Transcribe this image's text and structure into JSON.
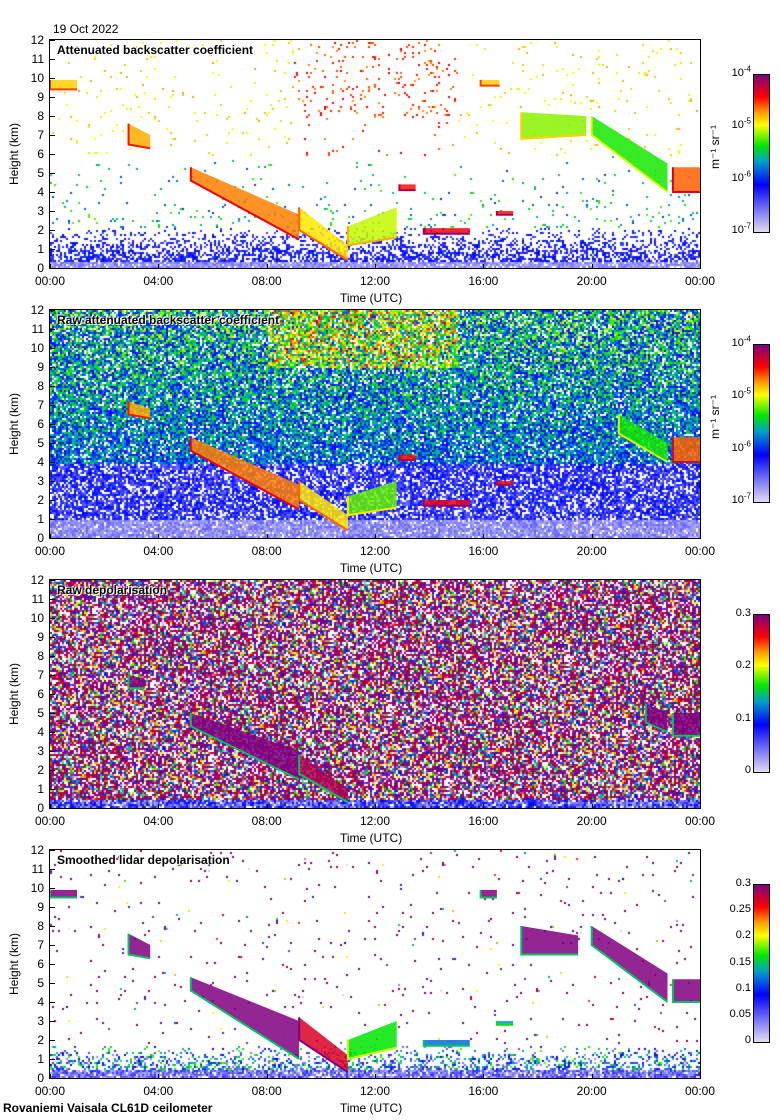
{
  "header": {
    "date": "19 Oct 2022"
  },
  "footer": {
    "caption": "Rovaniemi Vaisala CL61D ceilometer"
  },
  "axes": {
    "xlabel": "Time (UTC)",
    "ylabel": "Height (km)",
    "xticks": [
      "00:00",
      "04:00",
      "08:00",
      "12:00",
      "16:00",
      "20:00",
      "00:00"
    ],
    "yticks": [
      "0",
      "1",
      "2",
      "3",
      "4",
      "5",
      "6",
      "7",
      "8",
      "9",
      "10",
      "11",
      "12"
    ],
    "xlim": [
      0,
      24
    ],
    "ylim": [
      0,
      12
    ]
  },
  "colors": {
    "lavender": "#e0dcf0",
    "blue": "#0000ff",
    "green": "#00e000",
    "yellow": "#ffff00",
    "red": "#ff0000",
    "purple": "#800080"
  },
  "chart_data": [
    {
      "type": "heatmap",
      "title": "Attenuated backscatter coefficient",
      "mode": "att",
      "colorbar": {
        "scale": "log",
        "unit": "m⁻¹ sr⁻¹",
        "range": [
          1e-07,
          0.0001
        ],
        "ticks": [
          {
            "base": "10",
            "exp": "-4"
          },
          {
            "base": "10",
            "exp": "-5"
          },
          {
            "base": "10",
            "exp": "-6"
          },
          {
            "base": "10",
            "exp": "-7"
          }
        ]
      },
      "features": [
        {
          "t": [
            0,
            1
          ],
          "bottom": [
            9.4,
            9.4
          ],
          "top": [
            9.9,
            9.9
          ],
          "level": 0.72
        },
        {
          "t": [
            2.9,
            3.7
          ],
          "bottom": [
            6.5,
            6.3
          ],
          "top": [
            7.6,
            7.0
          ],
          "level": 0.75
        },
        {
          "t": [
            5.2,
            9.2
          ],
          "bottom": [
            4.6,
            1.5
          ],
          "top": [
            5.3,
            2.8
          ],
          "level": 0.78
        },
        {
          "t": [
            9.2,
            11.0
          ],
          "bottom": [
            2.0,
            0.4
          ],
          "top": [
            3.2,
            1.2
          ],
          "level": 0.7
        },
        {
          "t": [
            11.0,
            12.8
          ],
          "bottom": [
            1.2,
            1.6
          ],
          "top": [
            2.2,
            3.2
          ],
          "level": 0.65
        },
        {
          "t": [
            12.9,
            13.5
          ],
          "bottom": [
            4.1,
            4.1
          ],
          "top": [
            4.4,
            4.4
          ],
          "level": 0.85
        },
        {
          "t": [
            13.8,
            15.5
          ],
          "bottom": [
            1.8,
            1.8
          ],
          "top": [
            2.1,
            2.1
          ],
          "level": 0.88
        },
        {
          "t": [
            16.5,
            17.1
          ],
          "bottom": [
            2.8,
            2.8
          ],
          "top": [
            3.0,
            3.0
          ],
          "level": 0.85
        },
        {
          "t": [
            15.9,
            16.6
          ],
          "bottom": [
            9.6,
            9.6
          ],
          "top": [
            9.9,
            9.9
          ],
          "level": 0.72
        },
        {
          "t": [
            17.4,
            19.8
          ],
          "bottom": [
            6.8,
            7.0
          ],
          "top": [
            8.2,
            8.0
          ],
          "level": 0.62
        },
        {
          "t": [
            20.0,
            22.8
          ],
          "bottom": [
            7.0,
            4.0
          ],
          "top": [
            8.0,
            5.5
          ],
          "level": 0.56
        },
        {
          "t": [
            23.0,
            24
          ],
          "bottom": [
            4.0,
            4.0
          ],
          "top": [
            5.3,
            5.3
          ],
          "level": 0.8
        }
      ]
    },
    {
      "type": "heatmap",
      "title": "Raw attenuated backscatter coefficient",
      "mode": "raw",
      "colorbar": {
        "scale": "log",
        "unit": "m⁻¹ sr⁻¹",
        "range": [
          1e-07,
          0.0001
        ],
        "ticks": [
          {
            "base": "10",
            "exp": "-4"
          },
          {
            "base": "10",
            "exp": "-5"
          },
          {
            "base": "10",
            "exp": "-6"
          },
          {
            "base": "10",
            "exp": "-7"
          }
        ]
      },
      "features": [
        {
          "t": [
            2.9,
            3.7
          ],
          "bottom": [
            6.5,
            6.3
          ],
          "top": [
            7.2,
            6.8
          ],
          "level": 0.75
        },
        {
          "t": [
            5.2,
            9.2
          ],
          "bottom": [
            4.6,
            1.5
          ],
          "top": [
            5.3,
            2.8
          ],
          "level": 0.78
        },
        {
          "t": [
            9.2,
            11.0
          ],
          "bottom": [
            2.0,
            0.4
          ],
          "top": [
            3.0,
            1.2
          ],
          "level": 0.7
        },
        {
          "t": [
            11.0,
            12.8
          ],
          "bottom": [
            1.2,
            1.6
          ],
          "top": [
            2.2,
            3.0
          ],
          "level": 0.6
        },
        {
          "t": [
            12.9,
            13.5
          ],
          "bottom": [
            4.1,
            4.1
          ],
          "top": [
            4.4,
            4.4
          ],
          "level": 0.85
        },
        {
          "t": [
            13.8,
            15.5
          ],
          "bottom": [
            1.7,
            1.7
          ],
          "top": [
            2.0,
            2.0
          ],
          "level": 0.88
        },
        {
          "t": [
            16.5,
            17.1
          ],
          "bottom": [
            2.8,
            2.8
          ],
          "top": [
            3.0,
            3.0
          ],
          "level": 0.85
        },
        {
          "t": [
            21.0,
            22.8
          ],
          "bottom": [
            5.5,
            4.0
          ],
          "top": [
            6.5,
            5.0
          ],
          "level": 0.56
        },
        {
          "t": [
            23.0,
            24
          ],
          "bottom": [
            4.0,
            4.0
          ],
          "top": [
            5.3,
            5.3
          ],
          "level": 0.8
        }
      ]
    },
    {
      "type": "heatmap",
      "title": "Raw depolarisation",
      "mode": "depol",
      "colorbar": {
        "scale": "linear",
        "range": [
          0,
          0.3
        ],
        "ticks": [
          {
            "base": "0.3"
          },
          {
            "base": "0.2"
          },
          {
            "base": "0.1"
          },
          {
            "base": "0"
          }
        ]
      },
      "features": [
        {
          "t": [
            2.9,
            3.5
          ],
          "bottom": [
            6.3,
            6.3
          ],
          "top": [
            7.0,
            6.8
          ],
          "level": 1
        },
        {
          "t": [
            5.2,
            9.2
          ],
          "bottom": [
            4.3,
            1.5
          ],
          "top": [
            5.0,
            3.0
          ],
          "level": 1
        },
        {
          "t": [
            9.2,
            11.0
          ],
          "bottom": [
            1.8,
            0.3
          ],
          "top": [
            2.8,
            1.0
          ],
          "level": 0.95
        },
        {
          "t": [
            22.0,
            22.8
          ],
          "bottom": [
            4.5,
            4.0
          ],
          "top": [
            5.5,
            5.0
          ],
          "level": 1
        },
        {
          "t": [
            23.0,
            24
          ],
          "bottom": [
            3.8,
            3.8
          ],
          "top": [
            5.0,
            5.0
          ],
          "level": 1
        }
      ]
    },
    {
      "type": "heatmap",
      "title": "Smoothed lidar depolarisation",
      "mode": "smooth",
      "colorbar": {
        "scale": "linear",
        "range": [
          0,
          0.3
        ],
        "ticks": [
          {
            "base": "0.3"
          },
          {
            "base": "0.25"
          },
          {
            "base": "0.2"
          },
          {
            "base": "0.15"
          },
          {
            "base": "0.1"
          },
          {
            "base": "0.05"
          },
          {
            "base": "0"
          }
        ]
      },
      "features": [
        {
          "t": [
            0,
            1
          ],
          "bottom": [
            9.5,
            9.5
          ],
          "top": [
            9.9,
            9.9
          ],
          "level": 1
        },
        {
          "t": [
            2.9,
            3.7
          ],
          "bottom": [
            6.5,
            6.3
          ],
          "top": [
            7.6,
            7.0
          ],
          "level": 1
        },
        {
          "t": [
            5.2,
            9.2
          ],
          "bottom": [
            4.6,
            1.0
          ],
          "top": [
            5.3,
            3.0
          ],
          "level": 1
        },
        {
          "t": [
            9.2,
            11.0
          ],
          "bottom": [
            2.0,
            0.3
          ],
          "top": [
            3.2,
            1.2
          ],
          "level": 0.9
        },
        {
          "t": [
            11.0,
            12.8
          ],
          "bottom": [
            1.0,
            1.6
          ],
          "top": [
            2.0,
            3.0
          ],
          "level": 0.55
        },
        {
          "t": [
            13.8,
            15.5
          ],
          "bottom": [
            1.7,
            1.7
          ],
          "top": [
            2.0,
            2.0
          ],
          "level": 0.4
        },
        {
          "t": [
            16.5,
            17.1
          ],
          "bottom": [
            2.8,
            2.8
          ],
          "top": [
            3.0,
            3.0
          ],
          "level": 0.45
        },
        {
          "t": [
            15.9,
            16.5
          ],
          "bottom": [
            9.5,
            9.5
          ],
          "top": [
            9.9,
            9.9
          ],
          "level": 1
        },
        {
          "t": [
            17.4,
            19.5
          ],
          "bottom": [
            6.5,
            6.5
          ],
          "top": [
            8.0,
            7.5
          ],
          "level": 1
        },
        {
          "t": [
            20.0,
            22.8
          ],
          "bottom": [
            7.0,
            4.0
          ],
          "top": [
            8.0,
            5.5
          ],
          "level": 1
        },
        {
          "t": [
            23.0,
            24
          ],
          "bottom": [
            4.0,
            4.0
          ],
          "top": [
            5.2,
            5.2
          ],
          "level": 1
        }
      ]
    }
  ]
}
